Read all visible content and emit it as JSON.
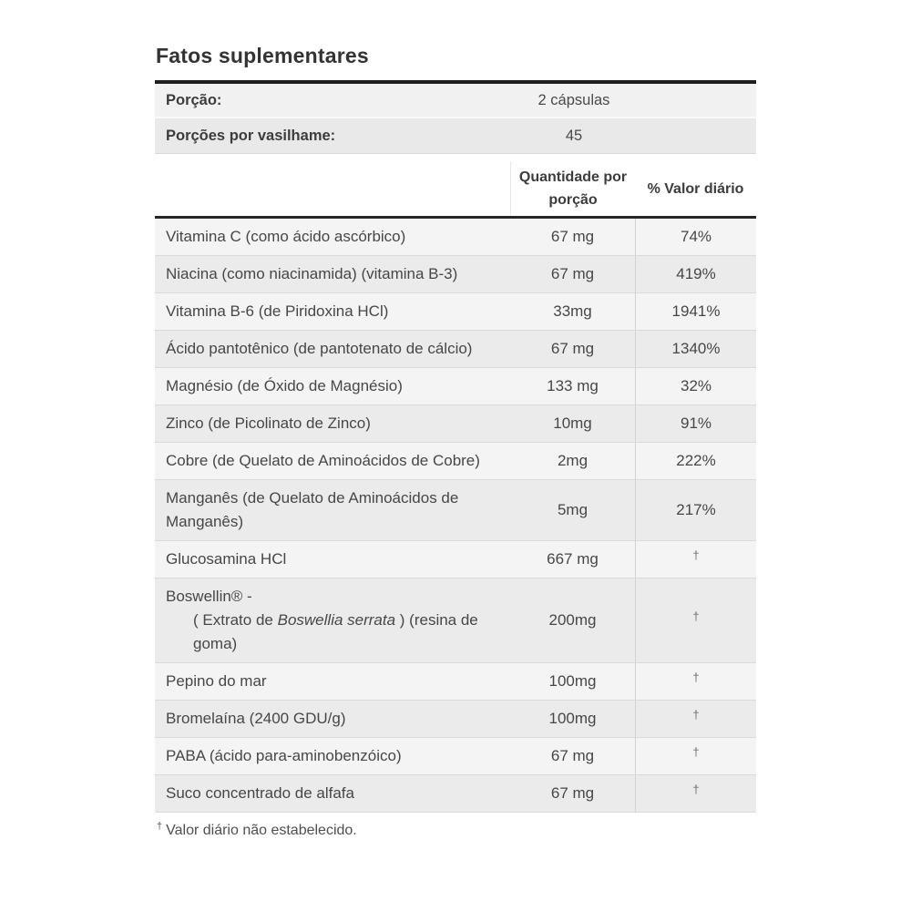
{
  "title": "Fatos suplementares",
  "serving_info": [
    {
      "label": "Porção:",
      "value": "2 cápsulas"
    },
    {
      "label": "Porções por vasilhame:",
      "value": "45"
    }
  ],
  "table": {
    "amount_header": "Quantidade por porção",
    "dv_header": "% Valor diário",
    "rows": [
      {
        "name": "Vitamina C (como ácido ascórbico)",
        "amount": "67 mg",
        "dv": "74%"
      },
      {
        "name": "Niacina (como niacinamida) (vitamina B-3)",
        "amount": "67 mg",
        "dv": "419%"
      },
      {
        "name": "Vitamina B-6 (de Piridoxina HCl)",
        "amount": "33mg",
        "dv": "1941%"
      },
      {
        "name": "Ácido pantotênico (de pantotenato de cálcio)",
        "amount": "67 mg",
        "dv": "1340%"
      },
      {
        "name": "Magnésio (de Óxido de Magnésio)",
        "amount": "133 mg",
        "dv": "32%"
      },
      {
        "name": "Zinco (de Picolinato de Zinco)",
        "amount": "10mg",
        "dv": "91%"
      },
      {
        "name": "Cobre (de Quelato de Aminoácidos de Cobre)",
        "amount": "2mg",
        "dv": "222%"
      },
      {
        "name": "Manganês (de Quelato de Aminoácidos de Manganês)",
        "amount": "5mg",
        "dv": "217%"
      },
      {
        "name": "Glucosamina HCl",
        "amount": "667 mg",
        "dv": "†"
      },
      {
        "name": "Boswellin® - ( Extrato de Boswellia serrata ) (resina de goma)",
        "name_rich": {
          "line1": "Boswellin® -",
          "line2_prefix": "( Extrato de ",
          "line2_italic": "Boswellia serrata",
          "line2_suffix": " ) (resina de goma)"
        },
        "amount": "200mg",
        "dv": "†"
      },
      {
        "name": "Pepino do mar",
        "amount": "100mg",
        "dv": "†"
      },
      {
        "name": "Bromelaína (2400 GDU/g)",
        "amount": "100mg",
        "dv": "†"
      },
      {
        "name": "PABA (ácido para-aminobenzóico)",
        "amount": "67 mg",
        "dv": "†"
      },
      {
        "name": "Suco concentrado de alfafa",
        "amount": "67 mg",
        "dv": "†"
      }
    ],
    "footnote_symbol": "†",
    "footnote_text": "Valor diário não estabelecido."
  },
  "colors": {
    "thick_border": "#1f1f1f",
    "row_separator": "#dadada",
    "row_light": "#f4f4f4",
    "row_dark": "#ebebeb",
    "info_row_light": "#f1f1f1",
    "info_row_dark": "#e9e9e9",
    "text": "#414141"
  }
}
